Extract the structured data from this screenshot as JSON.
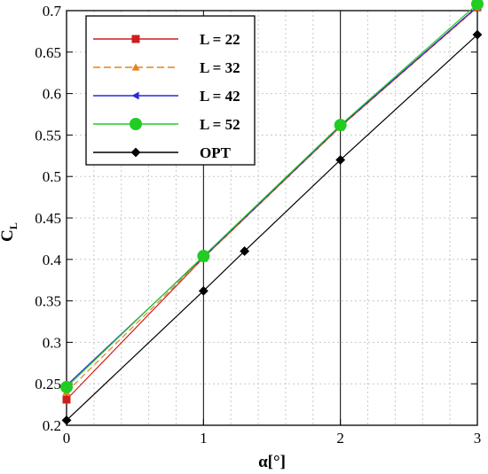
{
  "chart_data": {
    "type": "line",
    "xlabel": "α[°]",
    "ylabel": "C",
    "ylabel_sub": "L",
    "xlim": [
      0,
      3
    ],
    "ylim": [
      0.2,
      0.7
    ],
    "grid": true,
    "legend_position": "top-left",
    "x_ticks": [
      "0",
      "1",
      "2",
      "3"
    ],
    "y_ticks": [
      "0.2",
      "0.25",
      "0.3",
      "0.35",
      "0.4",
      "0.45",
      "0.5",
      "0.55",
      "0.6",
      "0.65",
      "0.7"
    ],
    "series": [
      {
        "name": "L = 22",
        "color": "#cc1e1e",
        "marker": "square",
        "dash": "none",
        "x": [
          0,
          1,
          2,
          3
        ],
        "y": [
          0.231,
          0.402,
          0.56,
          0.704
        ]
      },
      {
        "name": "L = 32",
        "color": "#e8821e",
        "marker": "triangle-up",
        "dash": "dashed",
        "x": [
          0,
          1,
          2,
          3
        ],
        "y": [
          0.24,
          0.402,
          0.56,
          0.704
        ]
      },
      {
        "name": "L = 42",
        "color": "#2a2ad6",
        "marker": "triangle-left",
        "dash": "none",
        "x": [
          0,
          1,
          2,
          3
        ],
        "y": [
          0.248,
          0.403,
          0.561,
          0.705
        ]
      },
      {
        "name": "L = 52",
        "color": "#22cc22",
        "marker": "circle",
        "dash": "none",
        "x": [
          0,
          1,
          2,
          3
        ],
        "y": [
          0.246,
          0.404,
          0.562,
          0.708
        ]
      },
      {
        "name": "OPT",
        "color": "#000000",
        "marker": "diamond",
        "dash": "none",
        "x": [
          0,
          1,
          1.3,
          2,
          3
        ],
        "y": [
          0.206,
          0.362,
          0.41,
          0.52,
          0.671
        ]
      }
    ]
  }
}
